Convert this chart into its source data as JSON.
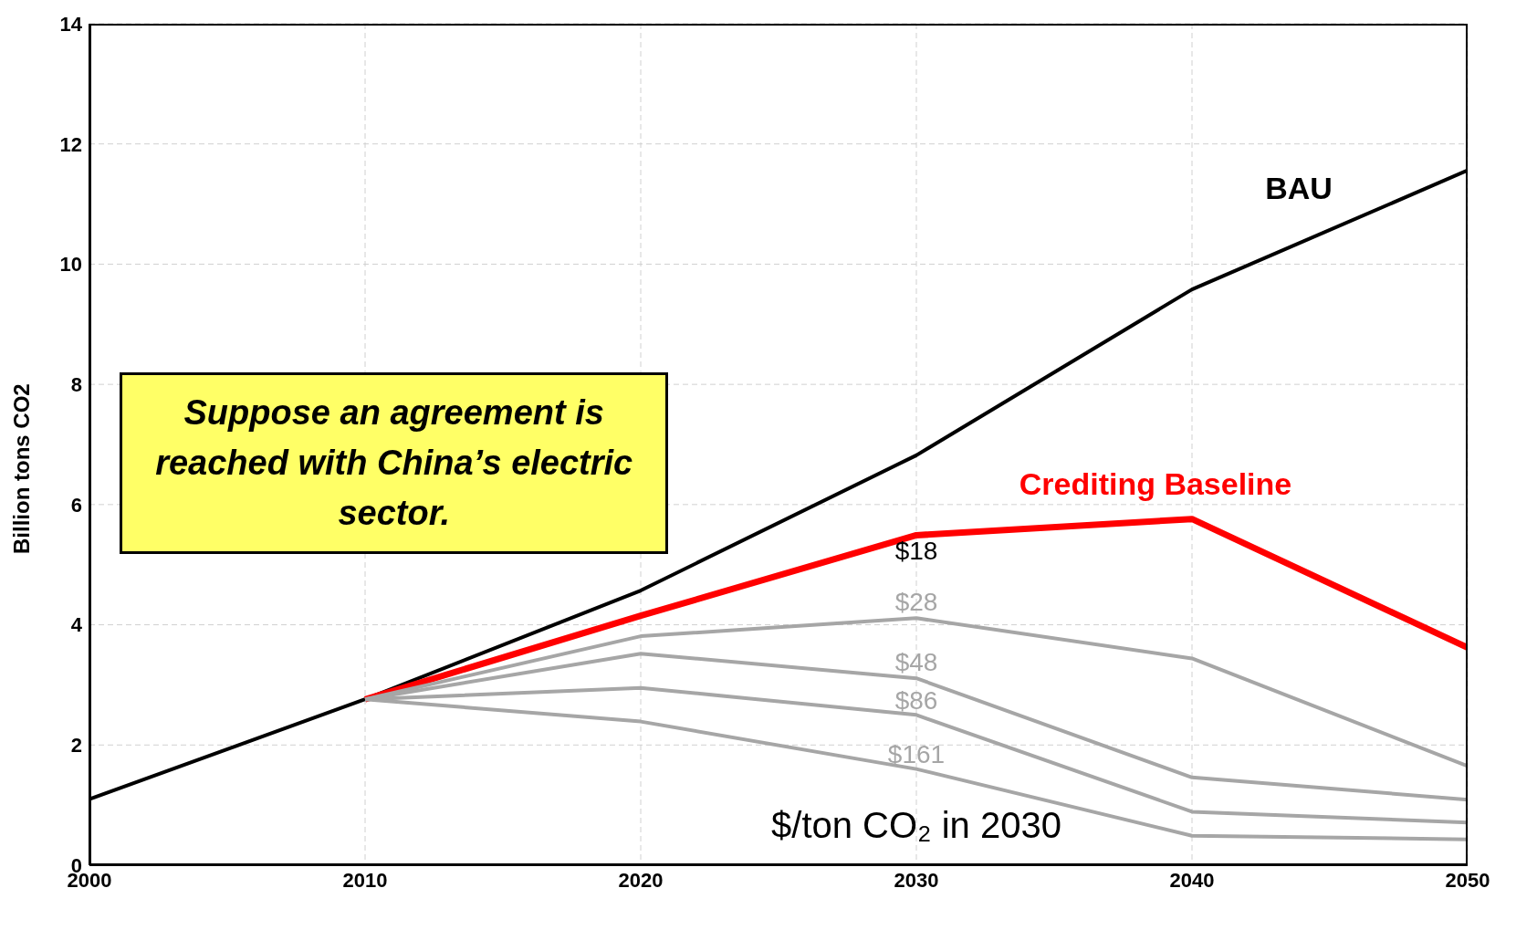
{
  "chart_data": {
    "type": "line",
    "ylabel": "Billion tons CO2",
    "xlim": [
      2000,
      2050
    ],
    "xticks": [
      2000,
      2010,
      2020,
      2030,
      2040,
      2050
    ],
    "ylim": [
      0,
      14
    ],
    "yticks": [
      0,
      2,
      4,
      6,
      8,
      10,
      12,
      14
    ],
    "grid": true,
    "legend": false,
    "marker": "none",
    "line_style": "solid",
    "series": [
      {
        "name": "BAU",
        "color": "#000000",
        "x": [
          2000,
          2010,
          2020,
          2030,
          2040,
          2050
        ],
        "values": [
          1.1,
          2.76,
          4.57,
          6.82,
          9.58,
          11.56
        ]
      },
      {
        "name": "Crediting Baseline",
        "color": "#ff0000",
        "x": [
          2010,
          2020,
          2030,
          2040,
          2050
        ],
        "values": [
          2.76,
          4.15,
          5.49,
          5.76,
          3.62
        ]
      },
      {
        "name": "$28",
        "color": "#a6a6a6",
        "x": [
          2010,
          2020,
          2030,
          2040,
          2050
        ],
        "values": [
          2.76,
          3.81,
          4.11,
          3.44,
          1.65
        ]
      },
      {
        "name": "$48",
        "color": "#a6a6a6",
        "x": [
          2010,
          2020,
          2030,
          2040,
          2050
        ],
        "values": [
          2.76,
          3.52,
          3.11,
          1.46,
          1.09
        ]
      },
      {
        "name": "$86",
        "color": "#a6a6a6",
        "x": [
          2010,
          2020,
          2030,
          2040,
          2050
        ],
        "values": [
          2.76,
          2.95,
          2.5,
          0.89,
          0.71
        ]
      },
      {
        "name": "$161",
        "color": "#a6a6a6",
        "x": [
          2010,
          2020,
          2030,
          2040,
          2050
        ],
        "values": [
          2.76,
          2.39,
          1.6,
          0.49,
          0.43
        ]
      }
    ],
    "annotations": [
      "$18",
      "Suppose an agreement is reached with China’s electric sector.",
      "$/ton CO₂ in 2030"
    ]
  }
}
